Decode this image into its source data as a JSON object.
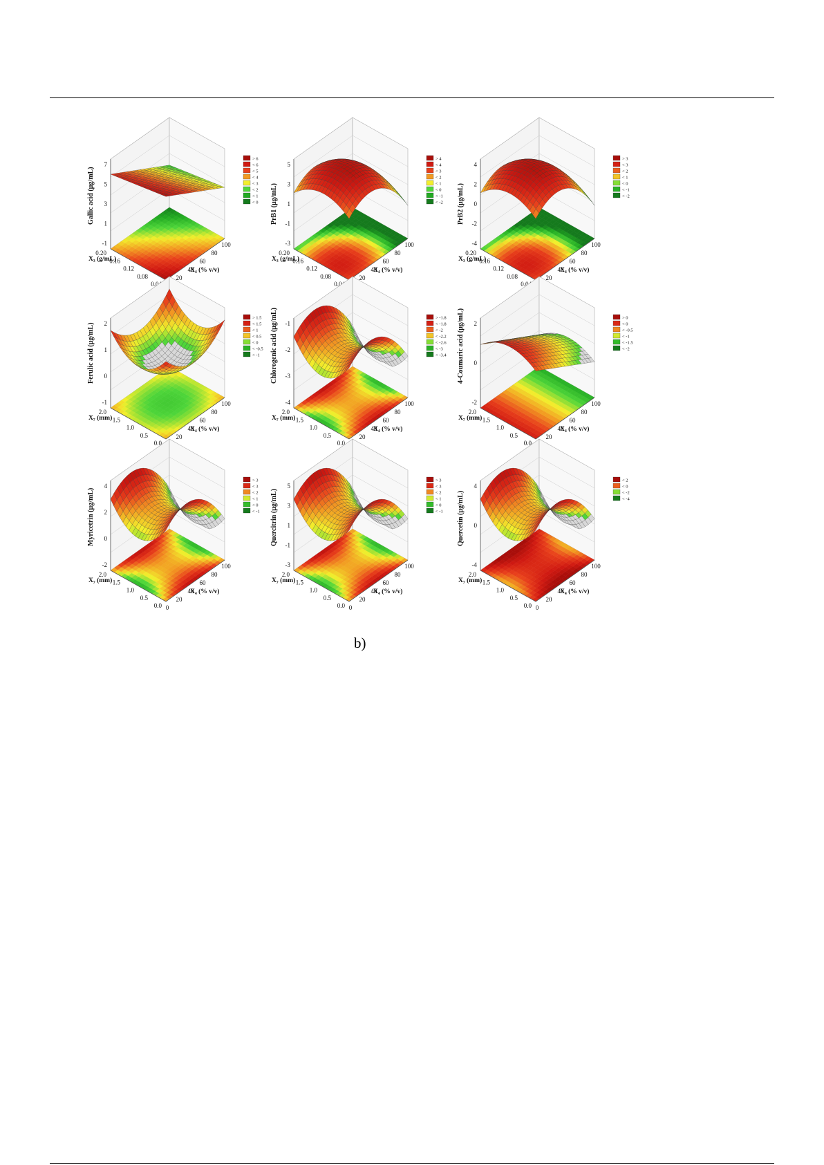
{
  "figure": {
    "caption": "b)",
    "page_number": ""
  },
  "colorscale": [
    "#157a1d",
    "#22aa22",
    "#4fd63a",
    "#f2ee2c",
    "#f29a22",
    "#e8401c",
    "#d01a12",
    "#a80e0a"
  ],
  "chart_data": [
    {
      "type": "surface3d",
      "title": "",
      "zlabel": "Gallic acid (µg/mL)",
      "xlabel": "X₃ (g/mL)",
      "ylabel": "X₄ (% v/v)",
      "x_ticks": [
        "0.20",
        "0.16",
        "0.12",
        "0.08",
        "0.04"
      ],
      "y_ticks": [
        "0",
        "20",
        "40",
        "60",
        "80",
        "100"
      ],
      "z_ticks": [
        "7",
        "5",
        "3",
        "1",
        "-1"
      ],
      "z_range": [
        -1,
        7
      ],
      "legend": [
        "> 6",
        "< 6",
        "< 5",
        "< 4",
        "< 3",
        "< 2",
        "< 1",
        "< 0"
      ],
      "surface_shape": "plane",
      "base_pattern": "red-top-left",
      "mesh_grey": false
    },
    {
      "type": "surface3d",
      "title": "",
      "zlabel": "PrB1 (µg/mL)",
      "xlabel": "X₃ (g/mL)",
      "ylabel": "X₄ (% v/v)",
      "x_ticks": [
        "0.20",
        "0.16",
        "0.12",
        "0.08",
        "0.04"
      ],
      "y_ticks": [
        "0",
        "20",
        "40",
        "60",
        "80",
        "100"
      ],
      "z_ticks": [
        "5",
        "3",
        "1",
        "-1",
        "-3"
      ],
      "z_range": [
        -3,
        5
      ],
      "legend": [
        "> 4",
        "< 4",
        "< 3",
        "< 2",
        "< 1",
        "< 0",
        "< -1",
        "< -2"
      ],
      "surface_shape": "dome",
      "base_pattern": "red-center",
      "mesh_grey": false
    },
    {
      "type": "surface3d",
      "title": "",
      "zlabel": "PrB2 (µg/mL)",
      "xlabel": "X₃ (g/mL)",
      "ylabel": "X₄ (% v/v)",
      "x_ticks": [
        "0.20",
        "0.16",
        "0.12",
        "0.08",
        "0.04"
      ],
      "y_ticks": [
        "0",
        "20",
        "40",
        "60",
        "80",
        "100"
      ],
      "z_ticks": [
        "4",
        "2",
        "0",
        "-2",
        "-4"
      ],
      "z_range": [
        -4,
        4
      ],
      "legend": [
        "> 3",
        "< 3",
        "< 2",
        "< 1",
        "< 0",
        "< -1",
        "< -2"
      ],
      "surface_shape": "dome",
      "base_pattern": "red-center",
      "mesh_grey": false
    },
    {
      "type": "surface3d",
      "title": "",
      "zlabel": "Ferulic acid (µg/mL)",
      "xlabel": "X₇ (mm)",
      "ylabel": "X₄ (% v/v)",
      "x_ticks": [
        "2.0",
        "1.5",
        "1.0",
        "0.5",
        "0.0"
      ],
      "y_ticks": [
        "0",
        "20",
        "40",
        "60",
        "80",
        "100"
      ],
      "z_ticks": [
        "2",
        "1",
        "0",
        "-1"
      ],
      "z_range": [
        -1,
        2
      ],
      "legend": [
        "> 1.5",
        "< 1.5",
        "< 1",
        "< 0.5",
        "< 0",
        "< -0.5",
        "< -1"
      ],
      "surface_shape": "bowl",
      "base_pattern": "green-radial",
      "mesh_grey": true
    },
    {
      "type": "surface3d",
      "title": "",
      "zlabel": "Chlorogenic acid (µg/mL)",
      "xlabel": "X₇ (mm)",
      "ylabel": "X₄ (% v/v)",
      "x_ticks": [
        "2.0",
        "1.5",
        "1.0",
        "0.5",
        "0.0"
      ],
      "y_ticks": [
        "0",
        "20",
        "40",
        "60",
        "80",
        "100"
      ],
      "z_ticks": [
        "-1",
        "-2",
        "-3",
        "-4"
      ],
      "z_range": [
        -4,
        -1
      ],
      "legend": [
        "> -1.8",
        "< -1.8",
        "< -2",
        "< -2.2",
        "< -2.6",
        "< -3",
        "< -3.4"
      ],
      "surface_shape": "saddle",
      "base_pattern": "saddle",
      "mesh_grey": true
    },
    {
      "type": "surface3d",
      "title": "",
      "zlabel": "4-Coumaric acid (µg/mL)",
      "xlabel": "X₇ (mm)",
      "ylabel": "X₄ (% v/v)",
      "x_ticks": [
        "2.0",
        "1.5",
        "1.0",
        "0.5",
        "0.0"
      ],
      "y_ticks": [
        "0",
        "20",
        "40",
        "60",
        "80",
        "100"
      ],
      "z_ticks": [
        "2",
        "0",
        "-2"
      ],
      "z_range": [
        -2,
        2
      ],
      "legend": [
        "> 0",
        "< 0",
        "< -0.5",
        "< -1",
        "< -1.5",
        "< -2"
      ],
      "surface_shape": "ridge",
      "base_pattern": "gradient",
      "mesh_grey": true
    },
    {
      "type": "surface3d",
      "title": "",
      "zlabel": "Myricetrin (µg/mL)",
      "xlabel": "X₇ (mm)",
      "ylabel": "X₄ (% v/v)",
      "x_ticks": [
        "2.0",
        "1.5",
        "1.0",
        "0.5",
        "0.0"
      ],
      "y_ticks": [
        "0",
        "20",
        "40",
        "60",
        "80",
        "100"
      ],
      "z_ticks": [
        "4",
        "2",
        "0",
        "-2"
      ],
      "z_range": [
        -2,
        4
      ],
      "legend": [
        "> 3",
        "< 3",
        "< 2",
        "< 1",
        "< 0",
        "< -1"
      ],
      "surface_shape": "saddle",
      "base_pattern": "saddle",
      "mesh_grey": true
    },
    {
      "type": "surface3d",
      "title": "",
      "zlabel": "Quercitrin (µg/mL)",
      "xlabel": "X₇ (mm)",
      "ylabel": "X₄ (% v/v)",
      "x_ticks": [
        "2.0",
        "1.5",
        "1.0",
        "0.5",
        "0.0"
      ],
      "y_ticks": [
        "0",
        "20",
        "40",
        "60",
        "80",
        "100"
      ],
      "z_ticks": [
        "5",
        "3",
        "1",
        "-1",
        "-3"
      ],
      "z_range": [
        -3,
        5
      ],
      "legend": [
        "> 3",
        "< 3",
        "< 2",
        "< 1",
        "< 0",
        "< -1"
      ],
      "surface_shape": "saddle",
      "base_pattern": "saddle",
      "mesh_grey": true
    },
    {
      "type": "surface3d",
      "title": "",
      "zlabel": "Quercetin (µg/mL)",
      "xlabel": "X₇ (mm)",
      "ylabel": "X₄ (% v/v)",
      "x_ticks": [
        "2.0",
        "1.5",
        "1.0",
        "0.5",
        "0.0"
      ],
      "y_ticks": [
        "0",
        "20",
        "40",
        "60",
        "80",
        "100"
      ],
      "z_ticks": [
        "4",
        "0",
        "-4"
      ],
      "z_range": [
        -4,
        4
      ],
      "legend": [
        "< 2",
        "< 0",
        "< -2",
        "< -4"
      ],
      "surface_shape": "saddle",
      "base_pattern": "saddle-red",
      "mesh_grey": true
    }
  ]
}
